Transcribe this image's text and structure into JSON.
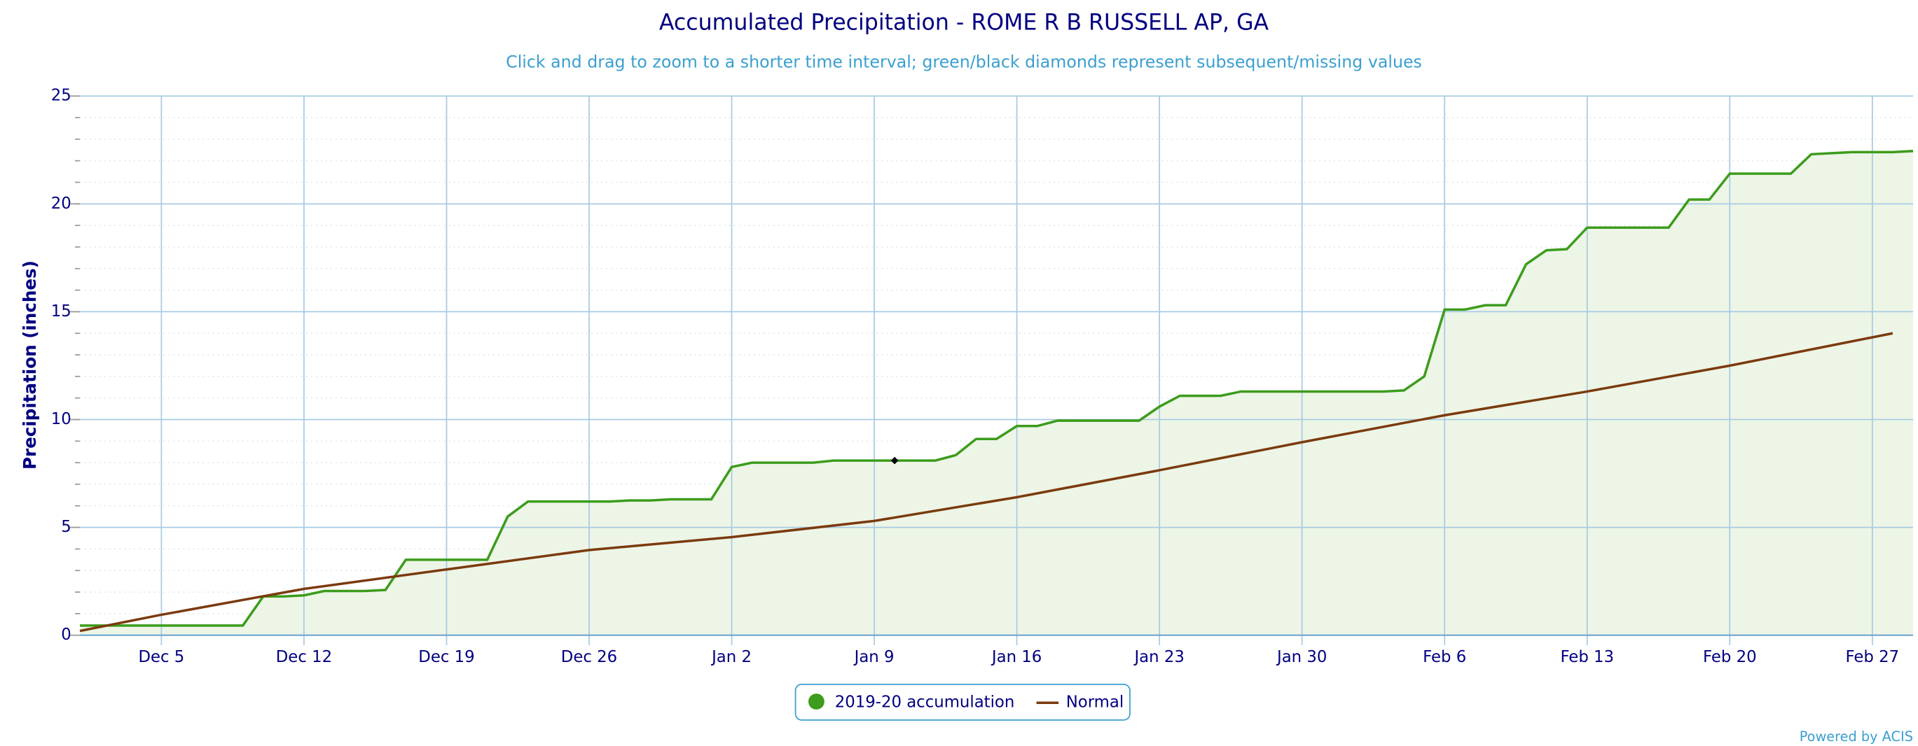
{
  "chart_data": {
    "type": "line",
    "title": "Accumulated Precipitation - ROME R B RUSSELL AP, GA",
    "subtitle": "Click and drag to zoom to a shorter time interval; green/black diamonds represent subsequent/missing values",
    "y_label": "Precipitation (inches)",
    "credit": "Powered by ACIS",
    "xlim": [
      0,
      90
    ],
    "xticks": [
      {
        "value": 4,
        "label": "Dec 5"
      },
      {
        "value": 11,
        "label": "Dec 12"
      },
      {
        "value": 18,
        "label": "Dec 19"
      },
      {
        "value": 25,
        "label": "Dec 26"
      },
      {
        "value": 32,
        "label": "Jan 2"
      },
      {
        "value": 39,
        "label": "Jan 9"
      },
      {
        "value": 46,
        "label": "Jan 16"
      },
      {
        "value": 53,
        "label": "Jan 23"
      },
      {
        "value": 60,
        "label": "Jan 30"
      },
      {
        "value": 67,
        "label": "Feb 6"
      },
      {
        "value": 74,
        "label": "Feb 13"
      },
      {
        "value": 81,
        "label": "Feb 20"
      },
      {
        "value": 88,
        "label": "Feb 27"
      }
    ],
    "ylim": [
      0,
      25
    ],
    "yticks": [
      0,
      5,
      10,
      15,
      20,
      25
    ],
    "minor_grid_step": 1,
    "grid": true,
    "legend": "bottom",
    "series": [
      {
        "name": "2019-20 accumulation",
        "color": "#3c9c1c",
        "fill": "#edf5e6",
        "x": [
          0,
          1,
          2,
          3,
          4,
          5,
          6,
          7,
          8,
          9,
          10,
          11,
          12,
          13,
          14,
          15,
          16,
          17,
          18,
          19,
          20,
          21,
          22,
          23,
          24,
          25,
          26,
          27,
          28,
          29,
          30,
          31,
          32,
          33,
          34,
          35,
          36,
          37,
          38,
          39,
          40,
          41,
          42,
          43,
          44,
          45,
          46,
          47,
          48,
          49,
          50,
          51,
          52,
          53,
          54,
          55,
          56,
          57,
          58,
          59,
          60,
          61,
          62,
          63,
          64,
          65,
          66,
          67,
          68,
          69,
          70,
          71,
          72,
          73,
          74,
          75,
          76,
          77,
          78,
          79,
          80,
          81,
          82,
          83,
          84,
          85,
          86,
          87,
          88,
          89,
          90
        ],
        "values": [
          0.45,
          0.45,
          0.45,
          0.45,
          0.45,
          0.45,
          0.45,
          0.45,
          0.45,
          1.8,
          1.8,
          1.85,
          2.05,
          2.05,
          2.05,
          2.1,
          3.5,
          3.5,
          3.5,
          3.5,
          3.5,
          5.5,
          6.2,
          6.2,
          6.2,
          6.2,
          6.2,
          6.25,
          6.25,
          6.3,
          6.3,
          6.3,
          7.8,
          8.0,
          8.0,
          8.0,
          8.0,
          8.1,
          8.1,
          8.1,
          8.1,
          8.1,
          8.1,
          8.35,
          9.1,
          9.1,
          9.7,
          9.7,
          9.95,
          9.95,
          9.95,
          9.95,
          9.95,
          10.6,
          11.1,
          11.1,
          11.1,
          11.3,
          11.3,
          11.3,
          11.3,
          11.3,
          11.3,
          11.3,
          11.3,
          11.35,
          12.0,
          15.1,
          15.1,
          15.3,
          15.3,
          17.2,
          17.85,
          17.9,
          18.9,
          18.9,
          18.9,
          18.9,
          18.9,
          20.2,
          20.2,
          21.4,
          21.4,
          21.4,
          21.4,
          22.3,
          22.35,
          22.4,
          22.4,
          22.4,
          22.45
        ]
      },
      {
        "name": "Normal",
        "color": "#7b3a0e",
        "x": [
          0,
          4,
          11,
          18,
          25,
          32,
          39,
          46,
          53,
          60,
          67,
          74,
          81,
          89
        ],
        "values": [
          0.2,
          0.95,
          2.15,
          3.05,
          3.95,
          4.55,
          5.3,
          6.4,
          7.65,
          8.95,
          10.2,
          11.3,
          12.5,
          14.0
        ]
      }
    ],
    "missing_points": {
      "color": "#000000",
      "x": [
        40
      ],
      "values": [
        8.1
      ]
    }
  }
}
